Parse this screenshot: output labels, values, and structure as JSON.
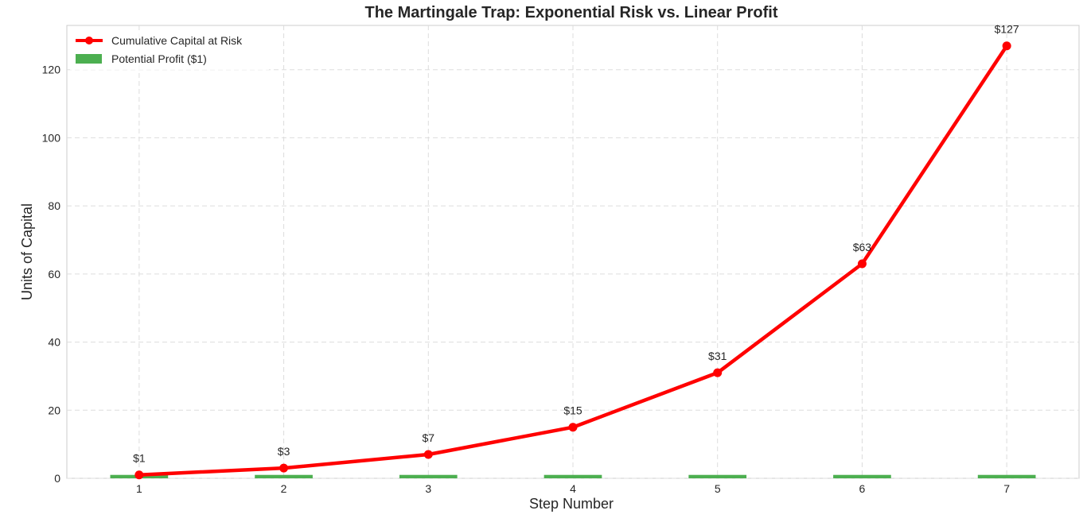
{
  "chart_data": {
    "type": "line",
    "title": "The Martingale Trap: Exponential Risk vs. Linear Profit",
    "xlabel": "Step Number",
    "ylabel": "Units of Capital",
    "x": [
      1,
      2,
      3,
      4,
      5,
      6,
      7
    ],
    "xticks": [
      "1",
      "2",
      "3",
      "4",
      "5",
      "6",
      "7"
    ],
    "xlim": [
      0.5,
      7.5
    ],
    "ylim": [
      0,
      133
    ],
    "yticks": [
      0,
      20,
      40,
      60,
      80,
      100,
      120
    ],
    "grid": true,
    "legend_position": "top-left",
    "series": [
      {
        "name": "Cumulative Capital at Risk",
        "kind": "line",
        "color": "#ff0000",
        "values": [
          1,
          3,
          7,
          15,
          31,
          63,
          127
        ],
        "labels": [
          "$1",
          "$3",
          "$7",
          "$15",
          "$31",
          "$63",
          "$127"
        ]
      },
      {
        "name": "Potential Profit ($1)",
        "kind": "bar",
        "color": "#4caf50",
        "values": [
          1,
          1,
          1,
          1,
          1,
          1,
          1
        ]
      }
    ]
  }
}
